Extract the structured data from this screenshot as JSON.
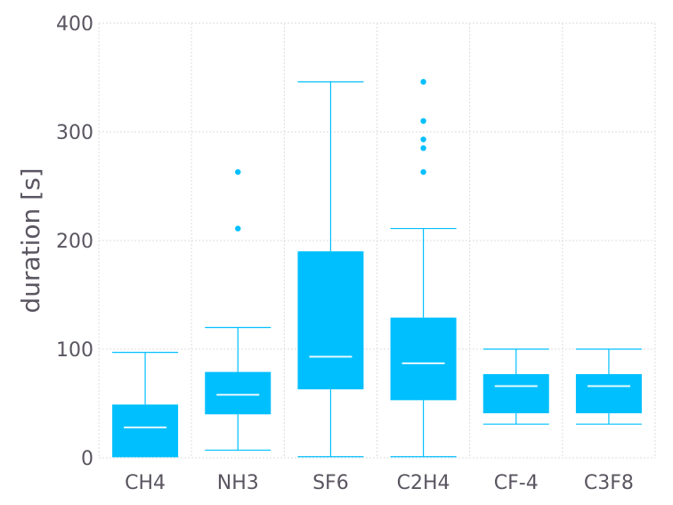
{
  "chart_data": {
    "type": "box",
    "title": "",
    "xlabel": "",
    "ylabel": "duration [s]",
    "ylim": [
      0,
      400
    ],
    "yticks": [
      0,
      100,
      200,
      300,
      400
    ],
    "grid": true,
    "legend": "none",
    "color": "#00bfff",
    "median_color": "#e6f9ff",
    "categories": [
      "CH4",
      "NH3",
      "SF6",
      "C2H4",
      "CF-4",
      "C3F8"
    ],
    "boxes": [
      {
        "category": "CH4",
        "whisker_low": 1,
        "q1": 1,
        "median": 28,
        "q3": 49,
        "whisker_high": 97,
        "outliers": []
      },
      {
        "category": "NH3",
        "whisker_low": 7,
        "q1": 40,
        "median": 58,
        "q3": 79,
        "whisker_high": 120,
        "outliers": [
          211,
          263
        ]
      },
      {
        "category": "SF6",
        "whisker_low": 1,
        "q1": 63,
        "median": 93,
        "q3": 190,
        "whisker_high": 346,
        "outliers": []
      },
      {
        "category": "C2H4",
        "whisker_low": 1,
        "q1": 53,
        "median": 87,
        "q3": 129,
        "whisker_high": 211,
        "outliers": [
          263,
          285,
          293,
          310,
          346
        ]
      },
      {
        "category": "CF-4",
        "whisker_low": 31,
        "q1": 41,
        "median": 66,
        "q3": 77,
        "whisker_high": 100,
        "outliers": []
      },
      {
        "category": "C3F8",
        "whisker_low": 31,
        "q1": 41,
        "median": 66,
        "q3": 77,
        "whisker_high": 100,
        "outliers": []
      }
    ]
  }
}
